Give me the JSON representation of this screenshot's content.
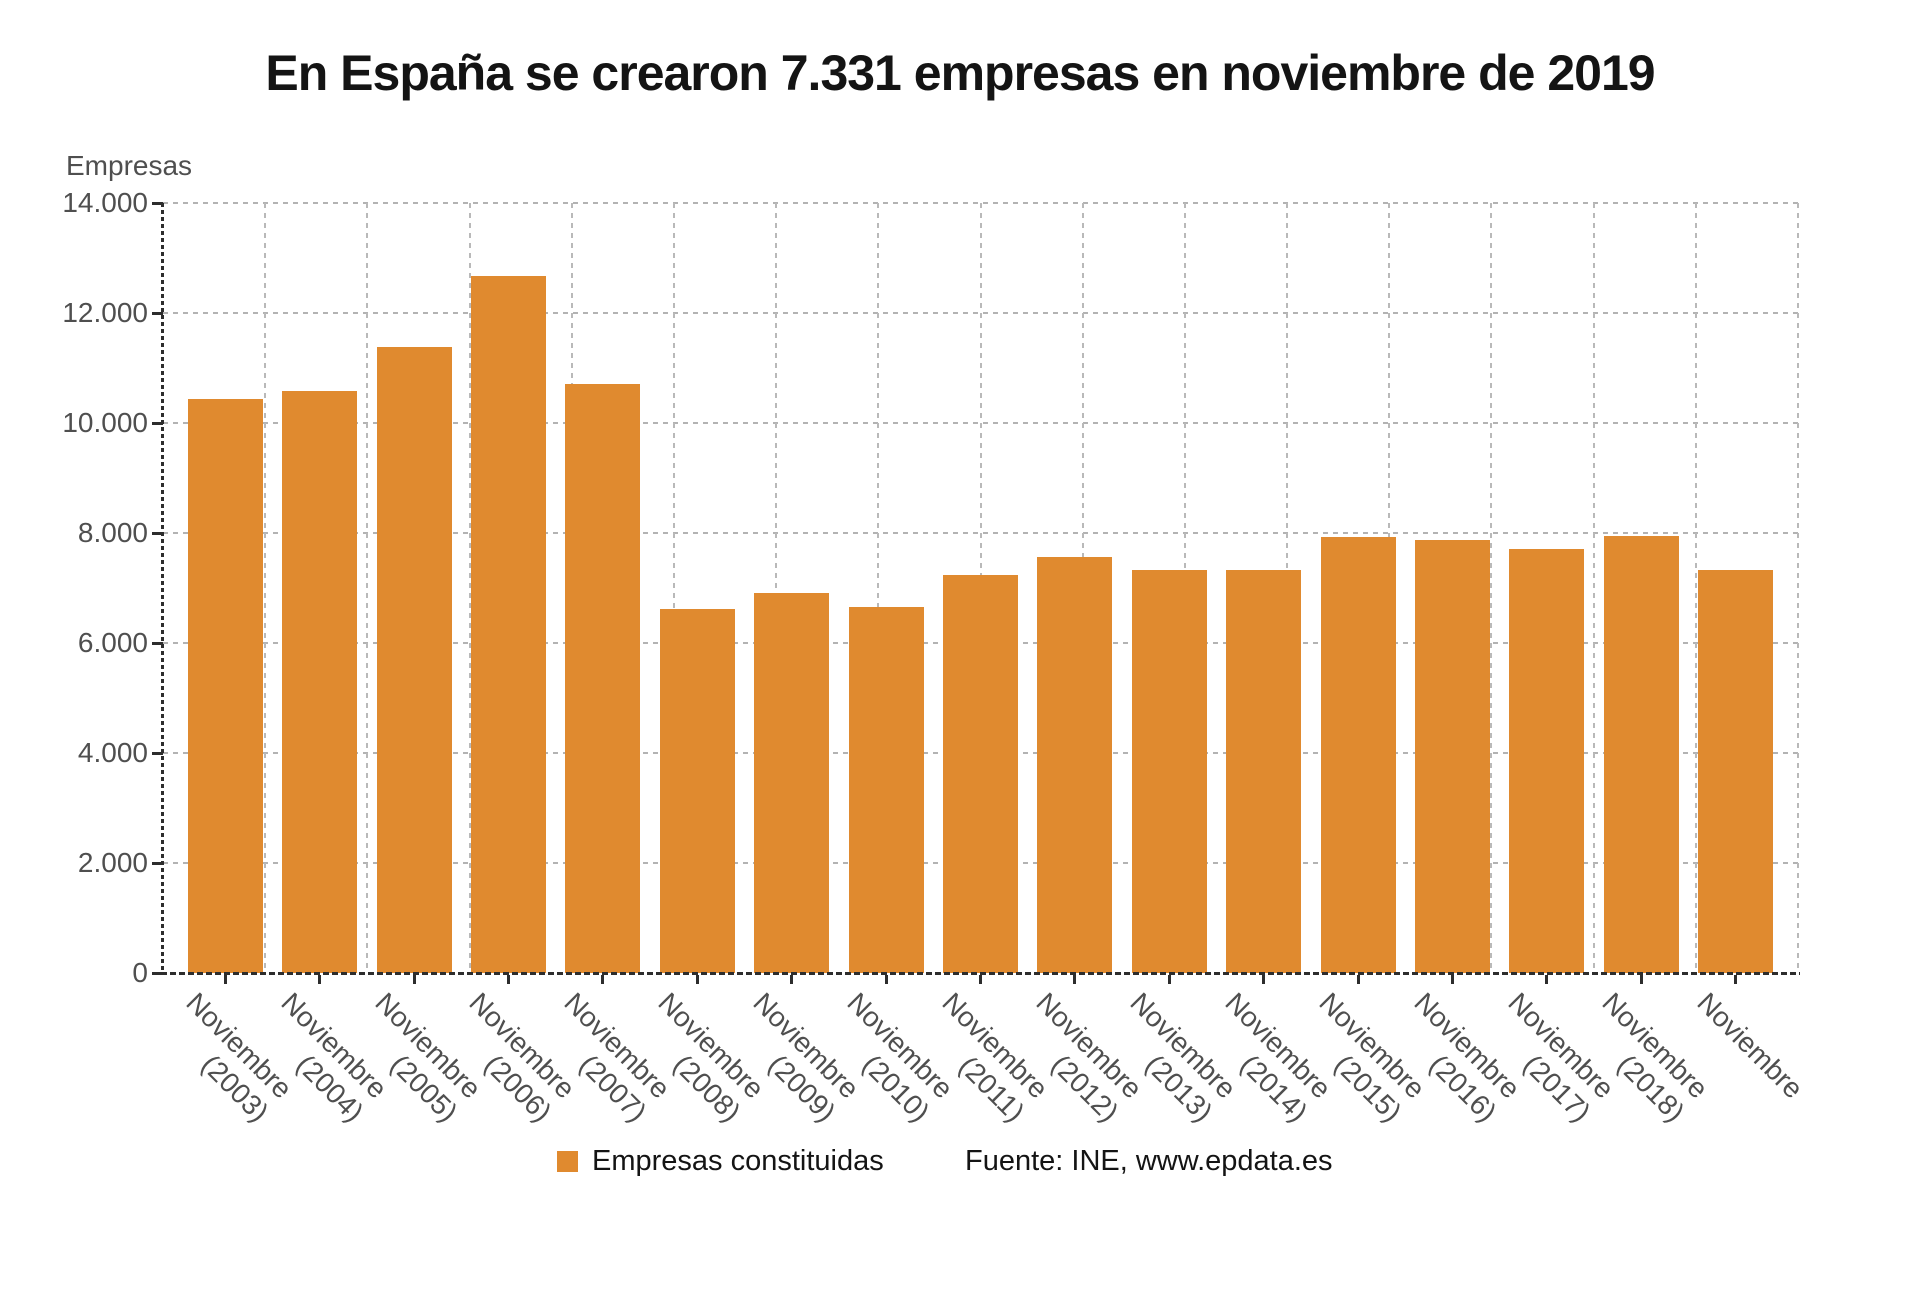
{
  "title": "En España se crearon 7.331 empresas en noviembre de 2019",
  "y_axis": {
    "label": "Empresas",
    "ticks": [
      "14.000",
      "12.000",
      "10.000",
      "8.000",
      "6.000",
      "4.000",
      "2.000",
      "0"
    ]
  },
  "legend": {
    "series_label": "Empresas constituidas",
    "source_label": "Fuente: INE, www.epdata.es"
  },
  "colors": {
    "bar": "#e08a2f",
    "grid": "#b3b3b3",
    "axis": "#2d2d2d",
    "tick_text": "#4f4f4f",
    "title_text": "#141414"
  },
  "chart_data": {
    "type": "bar",
    "title": "En España se crearon 7.331 empresas en noviembre de 2019",
    "xlabel": "",
    "ylabel": "Empresas",
    "ylim": [
      0,
      14000
    ],
    "y_tick_step": 2000,
    "grid": true,
    "legend_position": "bottom",
    "series_name": "Empresas constituidas",
    "source": "Fuente: INE, www.epdata.es",
    "categories": [
      "Noviembre (2003)",
      "Noviembre (2004)",
      "Noviembre (2005)",
      "Noviembre (2006)",
      "Noviembre (2007)",
      "Noviembre (2008)",
      "Noviembre (2009)",
      "Noviembre (2010)",
      "Noviembre (2011)",
      "Noviembre (2012)",
      "Noviembre (2013)",
      "Noviembre (2014)",
      "Noviembre (2015)",
      "Noviembre (2016)",
      "Noviembre (2017)",
      "Noviembre (2018)",
      "Noviembre"
    ],
    "values": [
      10440,
      10580,
      11390,
      12670,
      10710,
      6620,
      6910,
      6660,
      7230,
      7570,
      7320,
      7330,
      7930,
      7870,
      7700,
      7950,
      7331
    ]
  }
}
